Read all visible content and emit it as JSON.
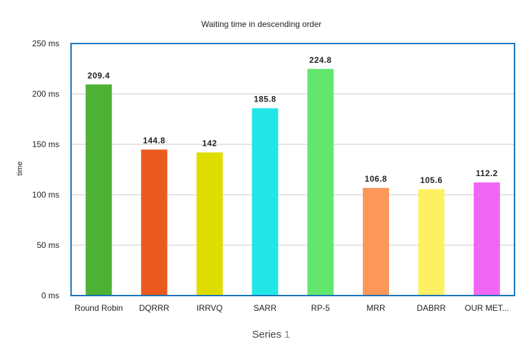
{
  "chart_data": {
    "type": "bar",
    "title": "Waiting  time in descending order",
    "ylabel": "time",
    "xlabel": "",
    "series_label": {
      "text": "Series ",
      "number": "1"
    },
    "categories": [
      "Round Robin",
      "DQRRR",
      "IRRVQ",
      "SARR",
      "RP-5",
      "MRR",
      "DABRR",
      "OUR MET..."
    ],
    "series": [
      {
        "values": [
          209.4,
          144.8,
          142,
          185.8,
          224.8,
          106.8,
          105.6,
          112.2
        ],
        "labels": [
          "209.4",
          "144.8",
          "142",
          "185.8",
          "224.8",
          "106.8",
          "105.6",
          "112.2"
        ]
      }
    ],
    "bar_colors": [
      "#4db233",
      "#ea5a1f",
      "#dfdd00",
      "#22e6e6",
      "#62e66e",
      "#fc975a",
      "#fdf163",
      "#ef66f4"
    ],
    "yticks": [
      {
        "value": 0,
        "label": "0 ms"
      },
      {
        "value": 50,
        "label": "50 ms"
      },
      {
        "value": 100,
        "label": "100 ms"
      },
      {
        "value": 150,
        "label": "150 ms"
      },
      {
        "value": 200,
        "label": "200 ms"
      },
      {
        "value": 250,
        "label": "250 ms"
      }
    ],
    "ylim": [
      0,
      250
    ],
    "grid": true,
    "legend": "none",
    "frame_color": "#1a72b8"
  }
}
